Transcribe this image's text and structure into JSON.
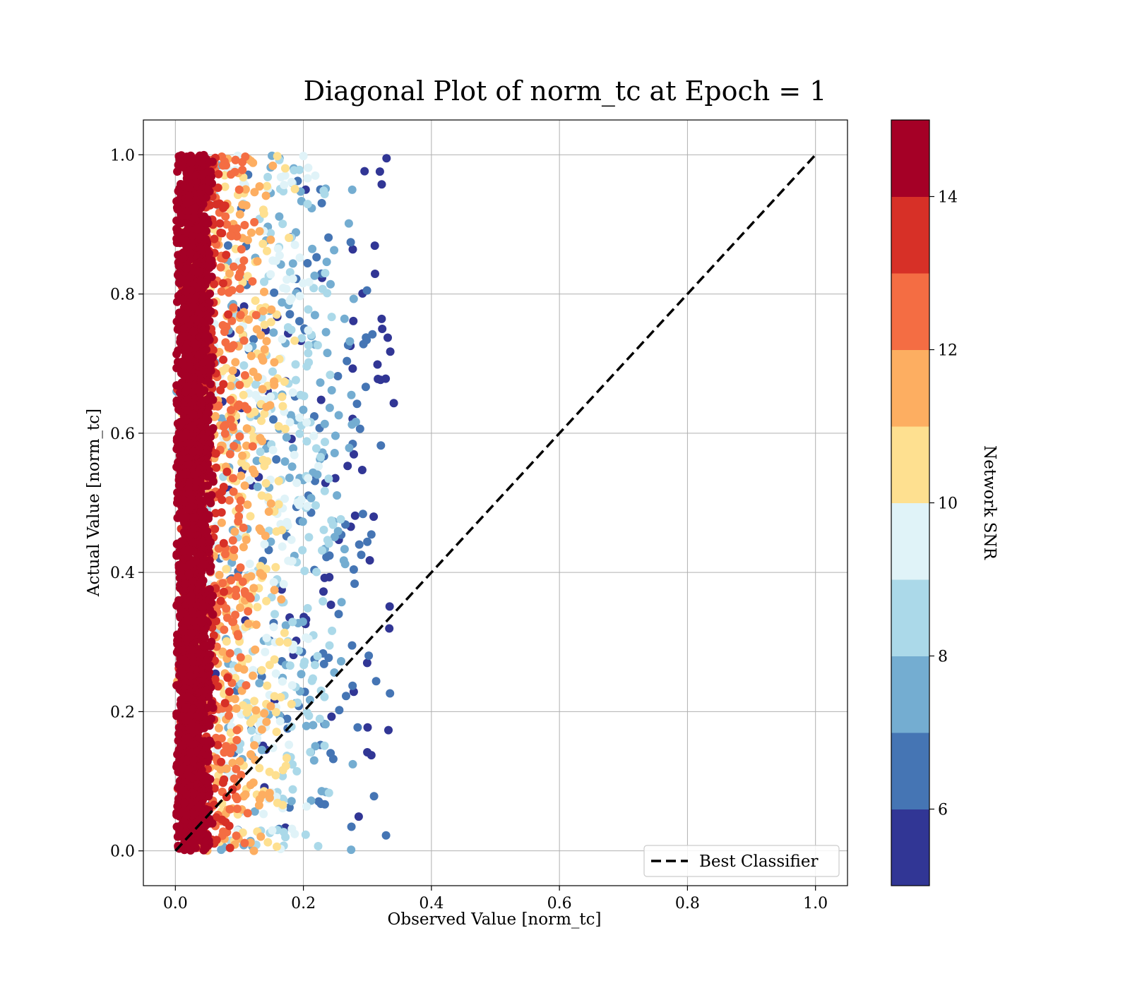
{
  "chart_data": {
    "type": "scatter",
    "title": "Diagonal Plot of norm_tc at Epoch = 1",
    "xlabel": "Observed Value [norm_tc]",
    "ylabel": "Actual Value [norm_tc]",
    "xlim": [
      -0.05,
      1.05
    ],
    "ylim": [
      -0.05,
      1.05
    ],
    "x_ticks": [
      0.0,
      0.2,
      0.4,
      0.6,
      0.8,
      1.0
    ],
    "x_tick_labels": [
      "0.0",
      "0.2",
      "0.4",
      "0.6",
      "0.8",
      "1.0"
    ],
    "y_ticks": [
      0.0,
      0.2,
      0.4,
      0.6,
      0.8,
      1.0
    ],
    "y_tick_labels": [
      "0.0",
      "0.2",
      "0.4",
      "0.6",
      "0.8",
      "1.0"
    ],
    "grid": true,
    "legend": {
      "placement": "lower-right",
      "entries": [
        "Best Classifier"
      ]
    },
    "reference_line": {
      "name": "Best Classifier",
      "style": "dashed",
      "color": "#000000",
      "x": [
        0.0,
        1.0
      ],
      "y": [
        0.0,
        1.0
      ]
    },
    "scatter_summary": {
      "x_range": [
        0.0,
        0.36
      ],
      "y_range": [
        0.0,
        1.0
      ],
      "color_variable": "Network SNR",
      "note": "x decreases as SNR increases: SNR≥14 near x 0.0–0.08, SNR 10–12 near x 0.15–0.25, SNR 5–8 near x 0.26–0.36"
    },
    "colorbar": {
      "label": "Network SNR",
      "range": [
        5,
        15
      ],
      "ticks": [
        6,
        8,
        10,
        12,
        14
      ],
      "tick_labels": [
        "6",
        "8",
        "10",
        "12",
        "14"
      ],
      "levels": [
        5,
        6,
        7,
        8,
        9,
        10,
        11,
        12,
        13,
        14,
        15
      ],
      "colors": [
        "#313695",
        "#4575b4",
        "#74add1",
        "#abd9e9",
        "#e0f3f8",
        "#fee090",
        "#fdae61",
        "#f46d43",
        "#d73027",
        "#a50026"
      ]
    }
  }
}
